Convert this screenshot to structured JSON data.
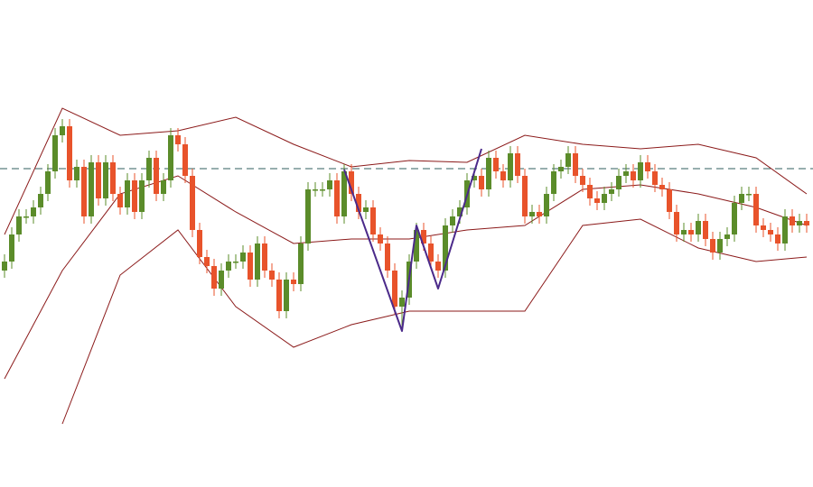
{
  "chart_data": {
    "type": "candlestick",
    "xlim": [
      -0.625,
      111.875
    ],
    "ylim": [
      0,
      540
    ],
    "up_color": "#5b8c2a",
    "down_color": "#e8532b",
    "open": [
      240,
      250,
      280,
      300,
      300,
      310,
      325,
      350,
      390,
      400,
      340,
      355,
      300,
      360,
      320,
      360,
      325,
      310,
      340,
      305,
      340,
      365,
      325,
      340,
      390,
      380,
      345,
      285,
      255,
      245,
      220,
      240,
      250,
      250,
      260,
      230,
      270,
      240,
      230,
      195,
      230,
      225,
      270,
      330,
      330,
      330,
      340,
      300,
      350,
      325,
      305,
      310,
      280,
      270,
      240,
      200,
      210,
      250,
      285,
      270,
      250,
      240,
      290,
      300,
      310,
      340,
      345,
      330,
      365,
      350,
      340,
      370,
      345,
      300,
      305,
      300,
      325,
      350,
      355,
      370,
      345,
      335,
      320,
      315,
      325,
      330,
      345,
      350,
      340,
      360,
      350,
      335,
      330,
      305,
      280,
      285,
      280,
      295,
      275,
      260,
      275,
      280,
      315,
      325,
      325,
      290,
      285,
      280,
      270,
      300,
      290,
      295
    ],
    "high": [
      258,
      288,
      308,
      308,
      318,
      333,
      358,
      398,
      408,
      408,
      363,
      363,
      368,
      368,
      368,
      368,
      333,
      348,
      348,
      348,
      373,
      373,
      348,
      398,
      398,
      388,
      353,
      293,
      263,
      253,
      248,
      258,
      258,
      268,
      268,
      278,
      278,
      248,
      238,
      238,
      238,
      278,
      338,
      338,
      338,
      348,
      348,
      358,
      358,
      333,
      318,
      318,
      288,
      278,
      248,
      218,
      258,
      293,
      293,
      278,
      258,
      298,
      308,
      318,
      348,
      353,
      353,
      373,
      373,
      358,
      378,
      378,
      353,
      313,
      313,
      333,
      358,
      363,
      378,
      378,
      353,
      343,
      328,
      333,
      338,
      353,
      358,
      358,
      368,
      368,
      358,
      343,
      338,
      313,
      293,
      293,
      303,
      303,
      283,
      283,
      288,
      323,
      333,
      333,
      333,
      298,
      293,
      288,
      308,
      308,
      303,
      303
    ],
    "low": [
      232,
      242,
      272,
      292,
      292,
      302,
      317,
      342,
      382,
      332,
      332,
      292,
      292,
      312,
      312,
      317,
      302,
      302,
      297,
      297,
      332,
      317,
      317,
      332,
      372,
      337,
      277,
      247,
      237,
      212,
      212,
      232,
      242,
      242,
      222,
      222,
      232,
      222,
      187,
      187,
      217,
      217,
      262,
      322,
      322,
      322,
      292,
      292,
      317,
      297,
      297,
      272,
      262,
      232,
      192,
      175,
      202,
      242,
      262,
      242,
      232,
      232,
      282,
      292,
      302,
      332,
      322,
      322,
      342,
      332,
      332,
      337,
      292,
      292,
      292,
      292,
      317,
      342,
      347,
      337,
      327,
      312,
      307,
      307,
      317,
      322,
      337,
      332,
      332,
      342,
      327,
      322,
      297,
      272,
      272,
      272,
      272,
      267,
      252,
      252,
      267,
      272,
      307,
      317,
      282,
      277,
      272,
      262,
      262,
      282,
      282,
      282
    ],
    "close": [
      250,
      280,
      300,
      300,
      310,
      325,
      350,
      390,
      400,
      340,
      355,
      300,
      360,
      320,
      360,
      325,
      310,
      340,
      305,
      340,
      365,
      325,
      340,
      390,
      380,
      345,
      285,
      255,
      245,
      220,
      240,
      250,
      250,
      260,
      230,
      270,
      240,
      230,
      195,
      230,
      225,
      270,
      330,
      330,
      330,
      340,
      300,
      350,
      325,
      305,
      310,
      280,
      270,
      240,
      200,
      210,
      250,
      285,
      270,
      250,
      240,
      290,
      300,
      310,
      340,
      345,
      330,
      365,
      350,
      340,
      370,
      345,
      300,
      305,
      300,
      325,
      350,
      355,
      370,
      345,
      335,
      320,
      315,
      325,
      330,
      345,
      350,
      340,
      360,
      350,
      335,
      330,
      305,
      280,
      285,
      280,
      295,
      275,
      260,
      275,
      280,
      315,
      325,
      325,
      290,
      285,
      280,
      270,
      300,
      290,
      295,
      290
    ],
    "bands": {
      "color": "#8b1a1a",
      "x": [
        0,
        8,
        16,
        24,
        32,
        40,
        48,
        56,
        64,
        72,
        80,
        88,
        96,
        104,
        111
      ],
      "series": [
        {
          "values": [
            280,
            420,
            390,
            395,
            410,
            380,
            355,
            362,
            360,
            390,
            380,
            375,
            380,
            365,
            325
          ]
        },
        {
          "values": [
            120,
            240,
            325,
            345,
            305,
            270,
            275,
            275,
            285,
            290,
            330,
            335,
            325,
            310,
            290
          ]
        },
        {
          "values": [
            null,
            70,
            235,
            285,
            200,
            155,
            180,
            195,
            195,
            195,
            290,
            297,
            265,
            250,
            255
          ]
        }
      ]
    },
    "pattern": {
      "color": "#4b2a8a",
      "x": [
        47,
        55,
        57,
        60,
        66
      ],
      "values": [
        352,
        173,
        290,
        220,
        375
      ]
    },
    "reference_line": {
      "value": 353,
      "color": "#2f5d5d"
    }
  }
}
